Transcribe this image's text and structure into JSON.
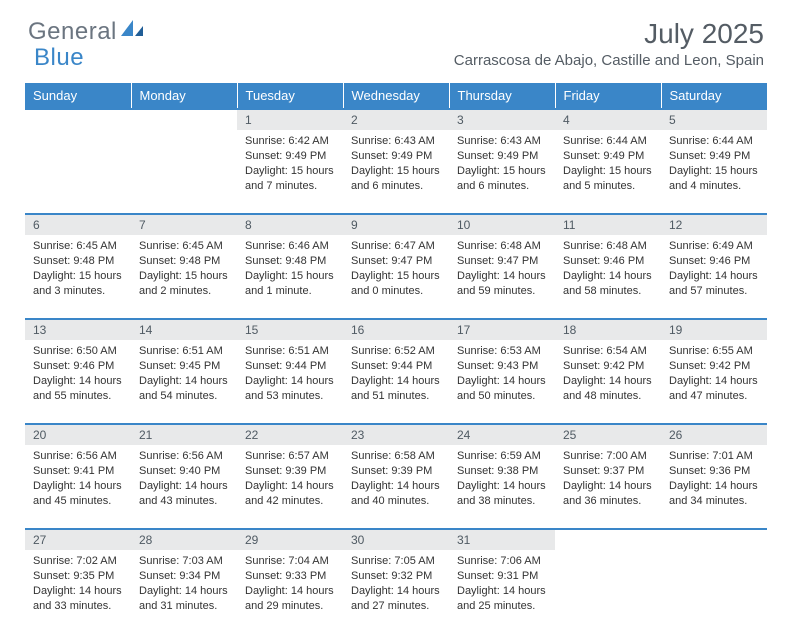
{
  "brand": {
    "general": "General",
    "blue": "Blue"
  },
  "title": "July 2025",
  "location": "Carrascosa de Abajo, Castille and Leon, Spain",
  "colors": {
    "header_bg": "#3a86c8",
    "header_text": "#ffffff",
    "daynum_bg": "#e8e9ea",
    "daynum_border": "#3a86c8",
    "body_text": "#333333",
    "title_text": "#545c64",
    "logo_gray": "#6b7580",
    "logo_blue": "#3a86c8"
  },
  "weekdays": [
    "Sunday",
    "Monday",
    "Tuesday",
    "Wednesday",
    "Thursday",
    "Friday",
    "Saturday"
  ],
  "weeks": [
    [
      null,
      null,
      {
        "n": "1",
        "sr": "6:42 AM",
        "ss": "9:49 PM",
        "dl": "15 hours and 7 minutes."
      },
      {
        "n": "2",
        "sr": "6:43 AM",
        "ss": "9:49 PM",
        "dl": "15 hours and 6 minutes."
      },
      {
        "n": "3",
        "sr": "6:43 AM",
        "ss": "9:49 PM",
        "dl": "15 hours and 6 minutes."
      },
      {
        "n": "4",
        "sr": "6:44 AM",
        "ss": "9:49 PM",
        "dl": "15 hours and 5 minutes."
      },
      {
        "n": "5",
        "sr": "6:44 AM",
        "ss": "9:49 PM",
        "dl": "15 hours and 4 minutes."
      }
    ],
    [
      {
        "n": "6",
        "sr": "6:45 AM",
        "ss": "9:48 PM",
        "dl": "15 hours and 3 minutes."
      },
      {
        "n": "7",
        "sr": "6:45 AM",
        "ss": "9:48 PM",
        "dl": "15 hours and 2 minutes."
      },
      {
        "n": "8",
        "sr": "6:46 AM",
        "ss": "9:48 PM",
        "dl": "15 hours and 1 minute."
      },
      {
        "n": "9",
        "sr": "6:47 AM",
        "ss": "9:47 PM",
        "dl": "15 hours and 0 minutes."
      },
      {
        "n": "10",
        "sr": "6:48 AM",
        "ss": "9:47 PM",
        "dl": "14 hours and 59 minutes."
      },
      {
        "n": "11",
        "sr": "6:48 AM",
        "ss": "9:46 PM",
        "dl": "14 hours and 58 minutes."
      },
      {
        "n": "12",
        "sr": "6:49 AM",
        "ss": "9:46 PM",
        "dl": "14 hours and 57 minutes."
      }
    ],
    [
      {
        "n": "13",
        "sr": "6:50 AM",
        "ss": "9:46 PM",
        "dl": "14 hours and 55 minutes."
      },
      {
        "n": "14",
        "sr": "6:51 AM",
        "ss": "9:45 PM",
        "dl": "14 hours and 54 minutes."
      },
      {
        "n": "15",
        "sr": "6:51 AM",
        "ss": "9:44 PM",
        "dl": "14 hours and 53 minutes."
      },
      {
        "n": "16",
        "sr": "6:52 AM",
        "ss": "9:44 PM",
        "dl": "14 hours and 51 minutes."
      },
      {
        "n": "17",
        "sr": "6:53 AM",
        "ss": "9:43 PM",
        "dl": "14 hours and 50 minutes."
      },
      {
        "n": "18",
        "sr": "6:54 AM",
        "ss": "9:42 PM",
        "dl": "14 hours and 48 minutes."
      },
      {
        "n": "19",
        "sr": "6:55 AM",
        "ss": "9:42 PM",
        "dl": "14 hours and 47 minutes."
      }
    ],
    [
      {
        "n": "20",
        "sr": "6:56 AM",
        "ss": "9:41 PM",
        "dl": "14 hours and 45 minutes."
      },
      {
        "n": "21",
        "sr": "6:56 AM",
        "ss": "9:40 PM",
        "dl": "14 hours and 43 minutes."
      },
      {
        "n": "22",
        "sr": "6:57 AM",
        "ss": "9:39 PM",
        "dl": "14 hours and 42 minutes."
      },
      {
        "n": "23",
        "sr": "6:58 AM",
        "ss": "9:39 PM",
        "dl": "14 hours and 40 minutes."
      },
      {
        "n": "24",
        "sr": "6:59 AM",
        "ss": "9:38 PM",
        "dl": "14 hours and 38 minutes."
      },
      {
        "n": "25",
        "sr": "7:00 AM",
        "ss": "9:37 PM",
        "dl": "14 hours and 36 minutes."
      },
      {
        "n": "26",
        "sr": "7:01 AM",
        "ss": "9:36 PM",
        "dl": "14 hours and 34 minutes."
      }
    ],
    [
      {
        "n": "27",
        "sr": "7:02 AM",
        "ss": "9:35 PM",
        "dl": "14 hours and 33 minutes."
      },
      {
        "n": "28",
        "sr": "7:03 AM",
        "ss": "9:34 PM",
        "dl": "14 hours and 31 minutes."
      },
      {
        "n": "29",
        "sr": "7:04 AM",
        "ss": "9:33 PM",
        "dl": "14 hours and 29 minutes."
      },
      {
        "n": "30",
        "sr": "7:05 AM",
        "ss": "9:32 PM",
        "dl": "14 hours and 27 minutes."
      },
      {
        "n": "31",
        "sr": "7:06 AM",
        "ss": "9:31 PM",
        "dl": "14 hours and 25 minutes."
      },
      null,
      null
    ]
  ],
  "labels": {
    "sunrise": "Sunrise:",
    "sunset": "Sunset:",
    "daylight": "Daylight:"
  }
}
